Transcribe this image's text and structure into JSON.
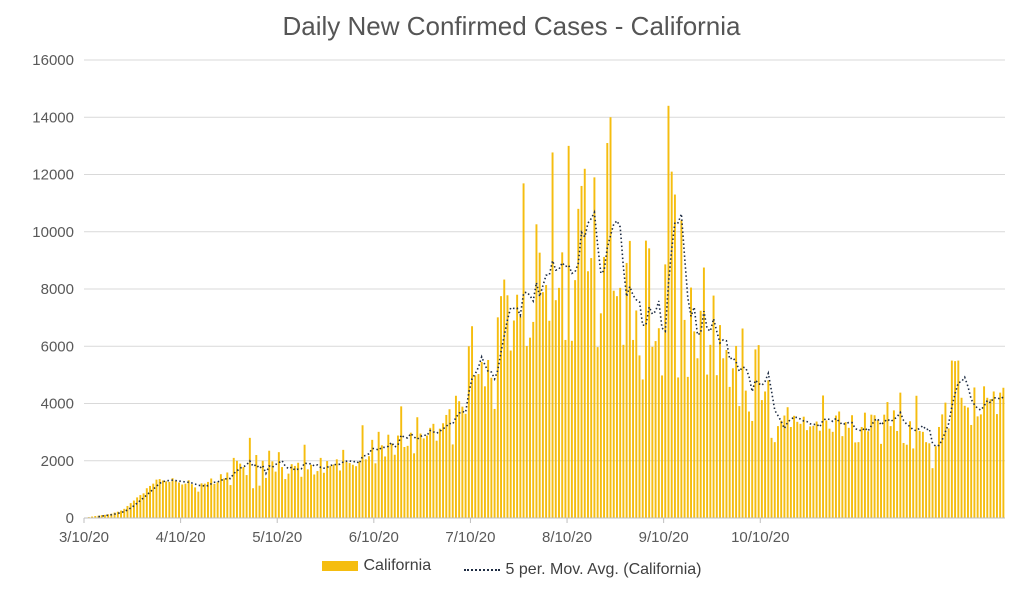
{
  "chart_data": {
    "type": "bar",
    "title": "Daily New Confirmed Cases - California",
    "xlabel": "",
    "ylabel": "",
    "ylim": [
      0,
      16000
    ],
    "yticks": [
      "0",
      "2000",
      "4000",
      "6000",
      "8000",
      "10000",
      "12000",
      "14000",
      "16000"
    ],
    "x_tick_labels": [
      "3/10/20",
      "4/10/20",
      "5/10/20",
      "6/10/20",
      "7/10/20",
      "8/10/20",
      "9/10/20",
      "10/10/20"
    ],
    "x_start": "3/10/20",
    "grid": true,
    "legend_position": "bottom",
    "series": [
      {
        "name": "California",
        "type": "bar",
        "color": "#f5bd0f",
        "values": [
          0,
          30,
          50,
          70,
          80,
          100,
          110,
          130,
          150,
          190,
          220,
          260,
          320,
          420,
          520,
          610,
          720,
          800,
          860,
          1040,
          1120,
          1200,
          1340,
          1360,
          1310,
          1280,
          1260,
          1390,
          1300,
          1240,
          1170,
          1200,
          1320,
          1180,
          1070,
          920,
          1210,
          1200,
          1260,
          1380,
          1190,
          1250,
          1530,
          1380,
          1590,
          1150,
          2100,
          2000,
          1900,
          1780,
          1500,
          2800,
          1040,
          2200,
          1130,
          2000,
          1400,
          2350,
          1980,
          1620,
          2300,
          1780,
          1360,
          1550,
          1880,
          1820,
          1930,
          1440,
          2560,
          1700,
          1860,
          1520,
          1640,
          2100,
          1580,
          1990,
          1820,
          1870,
          2050,
          1660,
          2380,
          1970,
          1920,
          1860,
          1810,
          1970,
          3240,
          2050,
          2160,
          2730,
          1910,
          3010,
          2540,
          2150,
          2910,
          2600,
          2210,
          2880,
          3900,
          2480,
          2520,
          2980,
          2260,
          3520,
          2950,
          2780,
          2880,
          3150,
          3290,
          2700,
          3120,
          3310,
          3600,
          3800,
          2570,
          4270,
          4080,
          3890,
          3640,
          6000,
          6700,
          4980,
          5030,
          5450,
          4600,
          5520,
          4900,
          3810,
          7010,
          7750,
          8330,
          7780,
          5850,
          6900,
          7800,
          7050,
          11690,
          6010,
          6300,
          6850,
          10260,
          9270,
          7890,
          8140,
          6890,
          12770,
          7610,
          8040,
          9280,
          6220,
          13000,
          6190,
          8310,
          10800,
          11600,
          12200,
          8620,
          9080,
          11900,
          5970,
          7150,
          9120,
          13100,
          14000,
          7940,
          7750,
          8040,
          6050,
          8910,
          9680,
          6220,
          7250,
          5680,
          4840,
          9690,
          9420,
          5980,
          6180,
          6630,
          4980,
          8860,
          14400,
          12100,
          11300,
          4910,
          10400,
          6920,
          4930,
          8050,
          6520,
          5580,
          7240,
          8750,
          5010,
          6050,
          7770,
          4990,
          6740,
          5580,
          5870,
          4580,
          5230,
          6010,
          3910,
          6620,
          4450,
          3720,
          3390,
          5890,
          6040,
          4120,
          4420,
          4810,
          2800,
          2650,
          3210,
          3400,
          3580,
          3870,
          3180,
          3570,
          3360,
          3290,
          3540,
          3070,
          3200,
          3220,
          3370,
          3050,
          4280,
          3410,
          3120,
          3010,
          3580,
          3720,
          2860,
          3350,
          3150,
          3590,
          2640,
          2650,
          3180,
          3680,
          3030,
          3610,
          3590,
          3420,
          2590,
          3610,
          4050,
          3210,
          3760,
          3040,
          4380,
          2620,
          2560,
          3380,
          2430,
          4270,
          3040,
          3010,
          2650,
          2610,
          1740,
          2510,
          3180,
          3620,
          4030,
          3130,
          5500,
          5480,
          5500,
          4200,
          3920,
          3860,
          3250,
          4560,
          3550,
          3620,
          4600,
          4200,
          4150,
          4420,
          3630,
          4380,
          4550
        ]
      },
      {
        "name": "5 per. Mov. Avg. (California)",
        "type": "line",
        "color": "#1f2d44"
      }
    ]
  }
}
